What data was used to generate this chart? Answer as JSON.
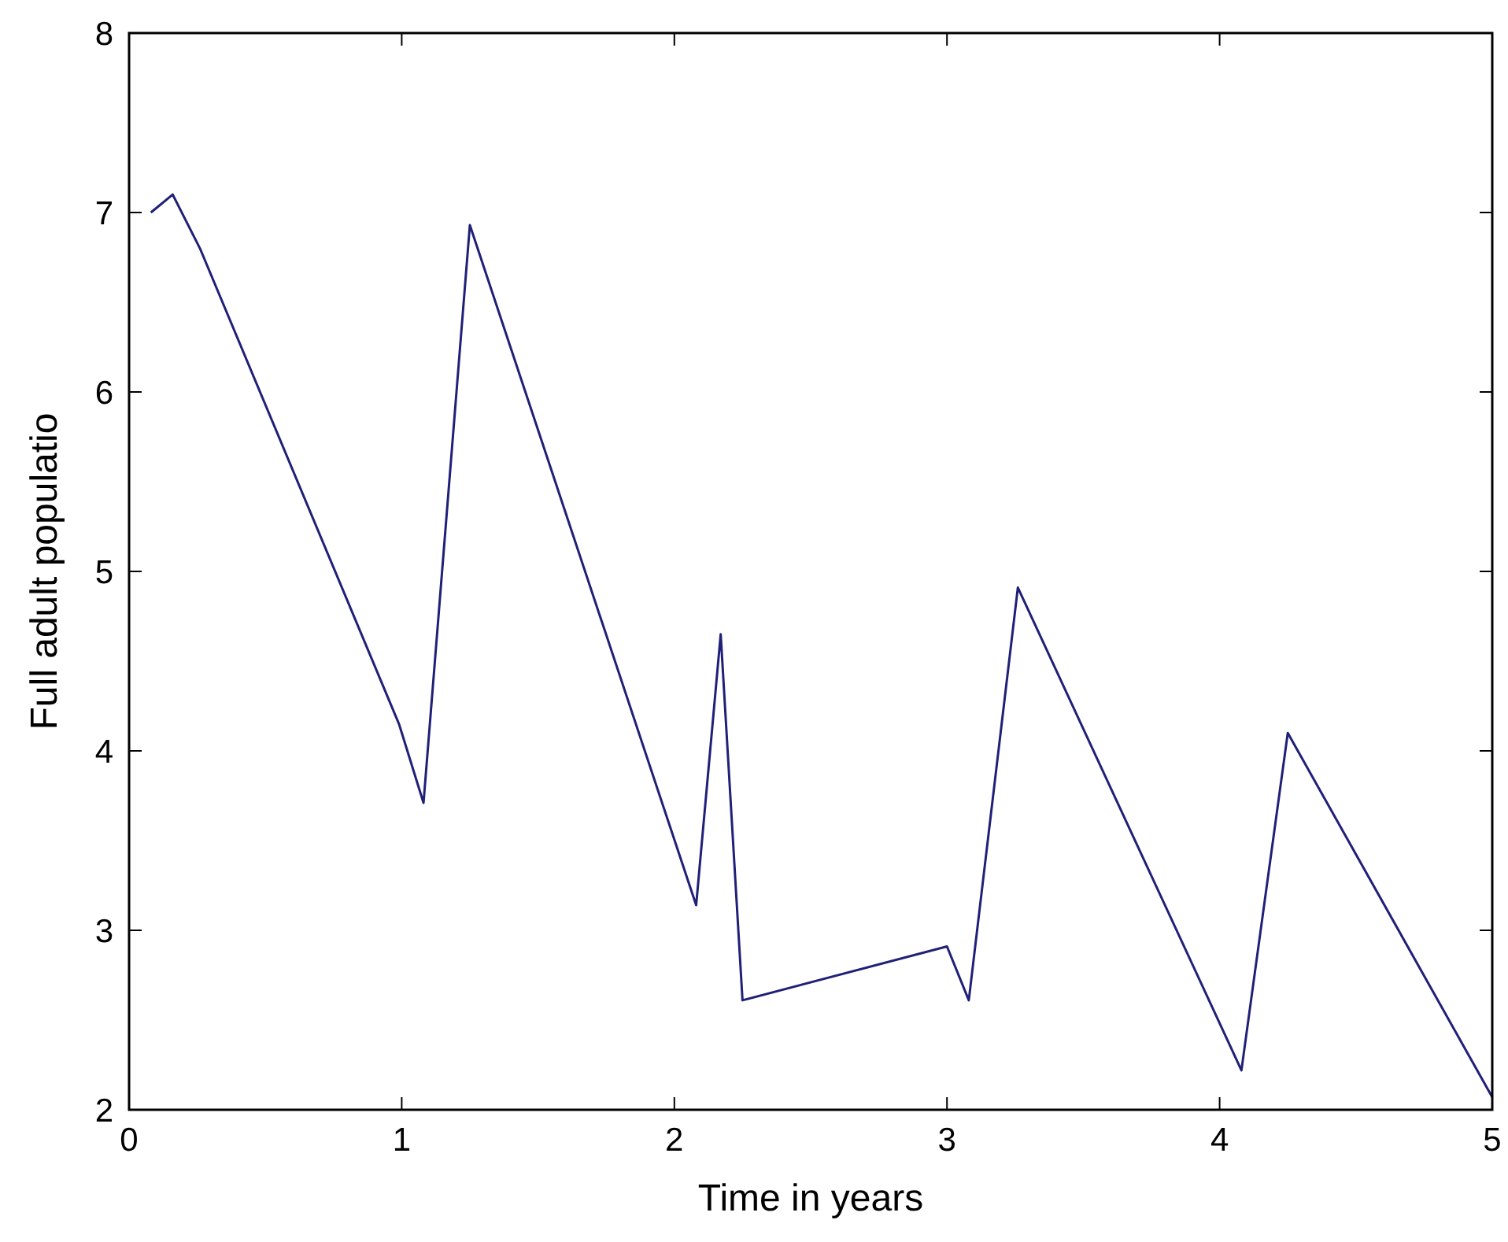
{
  "chart_data": {
    "type": "line",
    "xlabel": "Time in years",
    "ylabel": "Full adult populatio",
    "xlim": [
      0,
      5
    ],
    "ylim": [
      2,
      8
    ],
    "xticks": [
      0,
      1,
      2,
      3,
      4,
      5
    ],
    "yticks": [
      2,
      3,
      4,
      5,
      6,
      7,
      8
    ],
    "marker": "none",
    "line_style": "solid",
    "series": [
      {
        "color": "#202078",
        "x": [
          0.08,
          0.16,
          0.26,
          0.99,
          1.08,
          1.25,
          2.08,
          2.17,
          2.25,
          3.0,
          3.08,
          3.26,
          4.08,
          4.25,
          5.0
        ],
        "values": [
          7.0,
          7.1,
          6.8,
          4.15,
          3.71,
          6.93,
          3.14,
          4.65,
          2.61,
          2.91,
          2.61,
          4.91,
          2.22,
          4.1,
          2.07
        ]
      }
    ]
  }
}
